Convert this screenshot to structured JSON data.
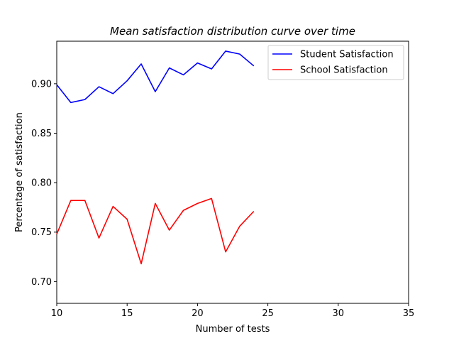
{
  "chart_data": {
    "type": "line",
    "title": "Mean satisfaction distribution curve over time",
    "xlabel": "Number of tests",
    "ylabel": "Percentage of satisfaction",
    "xlim": [
      10,
      35
    ],
    "ylim": [
      0.678,
      0.943
    ],
    "xticks": [
      "10",
      "15",
      "20",
      "25",
      "30",
      "35"
    ],
    "xtick_values": [
      10,
      15,
      20,
      25,
      30,
      35
    ],
    "yticks": [
      "0.70",
      "0.75",
      "0.80",
      "0.85",
      "0.90"
    ],
    "ytick_values": [
      0.7,
      0.75,
      0.8,
      0.85,
      0.9
    ],
    "grid": false,
    "legend_position": "top-right",
    "x": [
      10,
      11,
      12,
      13,
      14,
      15,
      16,
      17,
      18,
      19,
      20,
      21,
      22,
      23,
      24
    ],
    "series": [
      {
        "name": "Student Satisfaction",
        "color": "#0000ff",
        "values": [
          0.899,
          0.881,
          0.884,
          0.897,
          0.89,
          0.903,
          0.92,
          0.892,
          0.916,
          0.909,
          0.921,
          0.915,
          0.933,
          0.93,
          0.918
        ]
      },
      {
        "name": "School Satisfaction",
        "color": "#ff0000",
        "values": [
          0.748,
          0.782,
          0.782,
          0.744,
          0.776,
          0.763,
          0.718,
          0.779,
          0.752,
          0.772,
          0.779,
          0.784,
          0.73,
          0.756,
          0.771
        ]
      }
    ]
  }
}
